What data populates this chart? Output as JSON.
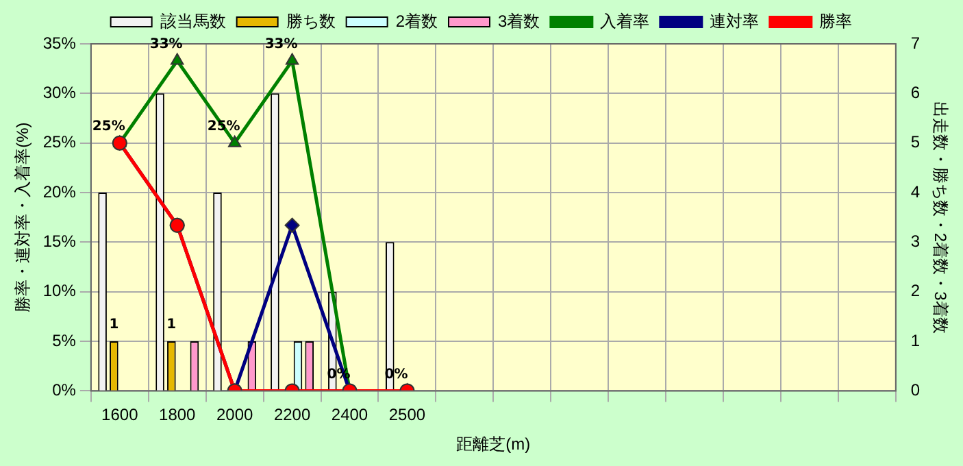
{
  "chart_data": {
    "type": "bar",
    "xlabel": "距離芝(m)",
    "ylabel": "勝率・連対率・入着率(%)",
    "y2label": "出走数・勝ち数・2着数・3着数",
    "categories": [
      "1600",
      "1800",
      "2000",
      "2200",
      "2400",
      "2500",
      null,
      null,
      null,
      null,
      null,
      null,
      null,
      null
    ],
    "series": [
      {
        "name": "該当馬数",
        "axis": "y2",
        "color": "#f2f2f2",
        "values": [
          4,
          6,
          4,
          6,
          2,
          3,
          null,
          null,
          null,
          null,
          null,
          null,
          null,
          null
        ]
      },
      {
        "name": "勝ち数",
        "axis": "y2",
        "color": "#e6b800",
        "values": [
          1,
          1,
          0,
          0,
          0,
          0,
          null,
          null,
          null,
          null,
          null,
          null,
          null,
          null
        ],
        "value_labels": [
          "1",
          "1",
          null,
          null,
          null,
          null,
          null,
          null,
          null,
          null,
          null,
          null,
          null,
          null
        ]
      },
      {
        "name": "2着数",
        "axis": "y2",
        "color": "#ccffff",
        "values": [
          0,
          0,
          0,
          1,
          0,
          0,
          null,
          null,
          null,
          null,
          null,
          null,
          null,
          null
        ]
      },
      {
        "name": "3着数",
        "axis": "y2",
        "color": "#ff99cc",
        "values": [
          0,
          1,
          1,
          1,
          0,
          0,
          null,
          null,
          null,
          null,
          null,
          null,
          null,
          null
        ]
      },
      {
        "name": "入着率",
        "type": "line",
        "color": "#008000",
        "marker": "triangle",
        "values": [
          25,
          33.3,
          25,
          33.3,
          0,
          0,
          null,
          null,
          null,
          null,
          null,
          null,
          null,
          null
        ],
        "value_labels": [
          "25%",
          "33%",
          "25%",
          "33%",
          "0%",
          "0%",
          null,
          null,
          null,
          null,
          null,
          null,
          null,
          null
        ]
      },
      {
        "name": "連対率",
        "type": "line",
        "color": "#000080",
        "marker": "diamond",
        "values": [
          25,
          16.7,
          0,
          16.7,
          0,
          null,
          null,
          null,
          null,
          null,
          null,
          null,
          null,
          null
        ]
      },
      {
        "name": "勝率",
        "type": "line",
        "color": "#ff0000",
        "marker": "circle",
        "values": [
          25,
          16.7,
          0,
          0,
          0,
          0,
          null,
          null,
          null,
          null,
          null,
          null,
          null,
          null
        ]
      }
    ],
    "ylim": [
      0,
      35
    ],
    "yticks": [
      {
        "value": 0,
        "label": "0%"
      },
      {
        "value": 5,
        "label": "5%"
      },
      {
        "value": 10,
        "label": "10%"
      },
      {
        "value": 15,
        "label": "15%"
      },
      {
        "value": 20,
        "label": "20%"
      },
      {
        "value": 25,
        "label": "25%"
      },
      {
        "value": 30,
        "label": "30%"
      },
      {
        "value": 35,
        "label": "35%"
      }
    ],
    "y2lim": [
      0,
      7
    ],
    "y2ticks": [
      0,
      1,
      2,
      3,
      4,
      5,
      6,
      7
    ],
    "grid": true,
    "legend": "top",
    "line_style": "solid"
  }
}
